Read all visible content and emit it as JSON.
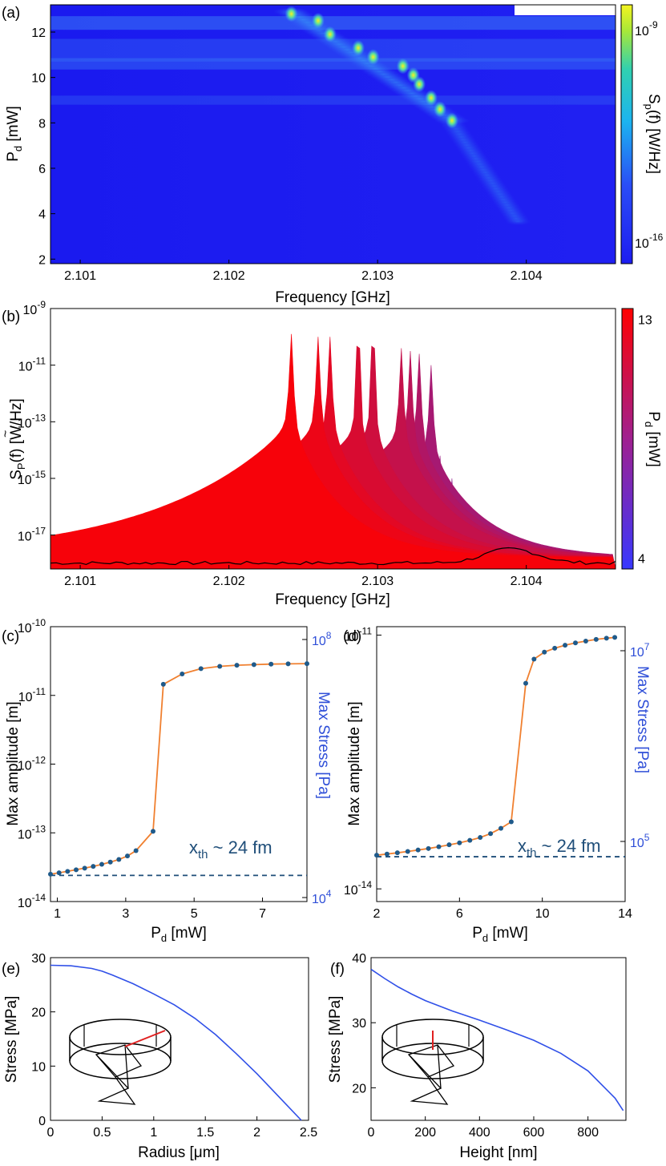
{
  "panels": {
    "a": {
      "label": "(a)",
      "type": "heatmap",
      "xlabel": "Frequency [GHz]",
      "ylabel_main": "P",
      "ylabel_sub": "d",
      "ylabel_unit": " [mW]",
      "x_ticks": [
        "2.101",
        "2.102",
        "2.103",
        "2.104"
      ],
      "x_tick_values": [
        2.101,
        2.102,
        2.103,
        2.104
      ],
      "xlim": [
        2.1008,
        2.1046
      ],
      "y_ticks": [
        "2",
        "4",
        "6",
        "8",
        "10",
        "12"
      ],
      "y_tick_values": [
        2,
        4,
        6,
        8,
        10,
        12
      ],
      "ylim": [
        1.8,
        13.2
      ],
      "colorbar_label": "S_p(f) [W/Hz]",
      "colorbar_label_main": "S",
      "colorbar_label_sub": "p",
      "colorbar_label_rest": "(f) [W/Hz]",
      "colorbar_ticks": [
        {
          "base": "10",
          "exp": "-9"
        },
        {
          "base": "10",
          "exp": "-16"
        }
      ],
      "resonance_peaks": [
        {
          "f": 2.10242,
          "p": 12.8
        },
        {
          "f": 2.1026,
          "p": 12.5
        },
        {
          "f": 2.10268,
          "p": 11.9
        },
        {
          "f": 2.10287,
          "p": 11.3
        },
        {
          "f": 2.10297,
          "p": 10.9
        },
        {
          "f": 2.10317,
          "p": 10.5
        },
        {
          "f": 2.10324,
          "p": 10.1
        },
        {
          "f": 2.10328,
          "p": 9.7
        },
        {
          "f": 2.10336,
          "p": 9.1
        },
        {
          "f": 2.10342,
          "p": 8.6
        },
        {
          "f": 2.1035,
          "p": 8.1
        }
      ]
    },
    "b": {
      "label": "(b)",
      "type": "area",
      "xlabel": "Frequency [GHz]",
      "ylabel": "S_P(f) [W/Hz]",
      "ylabel_main": "S",
      "ylabel_tilde": "~",
      "ylabel_sub": "P",
      "ylabel_rest": "(f) [W/Hz]",
      "x_ticks": [
        "2.101",
        "2.102",
        "2.103",
        "2.104"
      ],
      "x_tick_values": [
        2.101,
        2.102,
        2.103,
        2.104
      ],
      "xlim": [
        2.1008,
        2.1046
      ],
      "y_ticks": [
        {
          "base": "10",
          "exp": "-9"
        },
        {
          "base": "10",
          "exp": "-11"
        },
        {
          "base": "10",
          "exp": "-13"
        },
        {
          "base": "10",
          "exp": "-15"
        },
        {
          "base": "10",
          "exp": "-17"
        }
      ],
      "y_tick_exponents": [
        -9,
        -11,
        -13,
        -15,
        -17
      ],
      "ylim_log10": [
        -18.2,
        -9
      ],
      "colorbar_label_main": "P",
      "colorbar_label_sub": "d",
      "colorbar_label_rest": " [mW]",
      "colorbar_ticks": [
        "13",
        "4"
      ],
      "colorbar_tick_values": [
        13,
        4
      ],
      "colorbar_range": [
        3.6,
        13.4
      ],
      "spectra": [
        {
          "pd": 13.0,
          "f0": 2.10242,
          "peak_log": -9.9
        },
        {
          "pd": 12.5,
          "f0": 2.1026,
          "peak_log": -10.0
        },
        {
          "pd": 12.0,
          "f0": 2.10268,
          "peak_log": -10.0
        },
        {
          "pd": 11.5,
          "f0": 2.10287,
          "peak_log": -10.2
        },
        {
          "pd": 11.0,
          "f0": 2.10297,
          "peak_log": -10.2
        },
        {
          "pd": 10.5,
          "f0": 2.10316,
          "peak_log": -10.4
        },
        {
          "pd": 10.0,
          "f0": 2.10322,
          "peak_log": -10.5
        },
        {
          "pd": 9.5,
          "f0": 2.10328,
          "peak_log": -10.6
        },
        {
          "pd": 9.0,
          "f0": 2.10336,
          "peak_log": -11.0
        },
        {
          "pd": 8.5,
          "f0": 2.10342,
          "peak_log": -14.2
        },
        {
          "pd": 8.0,
          "f0": 2.1035,
          "peak_log": -15.0
        },
        {
          "pd": 7.5,
          "f0": 2.10357,
          "peak_log": -15.4
        },
        {
          "pd": 7.0,
          "f0": 2.10364,
          "peak_log": -15.8
        },
        {
          "pd": 6.5,
          "f0": 2.10372,
          "peak_log": -16.2
        },
        {
          "pd": 6.0,
          "f0": 2.1038,
          "peak_log": -16.5
        },
        {
          "pd": 5.5,
          "f0": 2.10388,
          "peak_log": -16.8
        },
        {
          "pd": 5.0,
          "f0": 2.10396,
          "peak_log": -17.2
        },
        {
          "pd": 4.5,
          "f0": 2.10405,
          "peak_log": -17.6
        },
        {
          "pd": 4.0,
          "f0": 2.10413,
          "peak_log": -17.9
        }
      ]
    },
    "c": {
      "label": "(c)",
      "type": "line",
      "xlabel_main": "P",
      "xlabel_sub": "d",
      "xlabel_unit": "  [mW]",
      "ylabel_left": "Max amplitude [m]",
      "ylabel_right": "Max Stress [Pa]",
      "annotation_main": "x",
      "annotation_sub": "th",
      "annotation_rest": " ~ 24 fm",
      "x_ticks": [
        "1",
        "3",
        "5",
        "7"
      ],
      "x_tick_values": [
        1,
        3,
        5,
        7
      ],
      "xlim": [
        0.8,
        8.3
      ],
      "y_left_ticks": [
        {
          "base": "10",
          "exp": "-10"
        },
        {
          "base": "10",
          "exp": "-11"
        },
        {
          "base": "10",
          "exp": "-12"
        },
        {
          "base": "10",
          "exp": "-13"
        },
        {
          "base": "10",
          "exp": "-14"
        }
      ],
      "y_left_exponents": [
        -10,
        -11,
        -12,
        -13,
        -14
      ],
      "ylim_log10": [
        -14,
        -10
      ],
      "y_right_ticks": [
        {
          "base": "10",
          "exp": "8"
        },
        {
          "base": "10",
          "exp": "4"
        }
      ],
      "y_right_exponents": [
        8,
        4
      ],
      "threshold_m": 2.4e-14,
      "x": [
        0.8,
        1.05,
        1.3,
        1.55,
        1.8,
        2.05,
        2.3,
        2.55,
        2.8,
        3.05,
        3.3,
        3.8,
        4.1,
        4.65,
        5.2,
        5.75,
        6.25,
        6.75,
        7.25,
        7.75,
        8.3
      ],
      "y": [
        2.5e-14,
        2.62e-14,
        2.75e-14,
        2.9e-14,
        3.06e-14,
        3.25e-14,
        3.48e-14,
        3.75e-14,
        4.1e-14,
        4.6e-14,
        5.5e-14,
        1.05e-13,
        1.45e-11,
        2.05e-11,
        2.45e-11,
        2.65e-11,
        2.75e-11,
        2.8e-11,
        2.85e-11,
        2.88e-11,
        2.9e-11
      ]
    },
    "d": {
      "label": "(d)",
      "type": "line",
      "xlabel_main": "P",
      "xlabel_sub": "d",
      "xlabel_unit": "  [mW]",
      "ylabel_left": "Max amplitude [m]",
      "ylabel_right": "Max Stress [Pa]",
      "annotation_main": "x",
      "annotation_sub": "th",
      "annotation_rest": " ~ 24 fm",
      "x_ticks": [
        "2",
        "6",
        "10",
        "14"
      ],
      "x_tick_values": [
        2,
        6,
        10,
        14
      ],
      "xlim": [
        2,
        14
      ],
      "y_left_ticks": [
        {
          "base": "10",
          "exp": "-11"
        },
        {
          "base": "10",
          "exp": "-14"
        }
      ],
      "y_left_exponents": [
        -11,
        -14
      ],
      "ylim_log10": [
        -14.15,
        -10.9
      ],
      "y_right_ticks": [
        {
          "base": "10",
          "exp": "7"
        },
        {
          "base": "10",
          "exp": "5"
        }
      ],
      "y_right_exponents": [
        7,
        5
      ],
      "threshold_m": 2.4e-14,
      "x": [
        2.0,
        2.5,
        3.0,
        3.5,
        4.0,
        4.5,
        5.0,
        5.5,
        6.0,
        6.5,
        7.0,
        7.5,
        8.0,
        8.5,
        9.2,
        9.6,
        10.1,
        10.6,
        11.1,
        11.6,
        12.1,
        12.6,
        13.1,
        13.5
      ],
      "y": [
        2.5e-14,
        2.58e-14,
        2.67e-14,
        2.77e-14,
        2.88e-14,
        3e-14,
        3.15e-14,
        3.32e-14,
        3.5e-14,
        3.75e-14,
        4.05e-14,
        4.5e-14,
        5.2e-14,
        6.2e-14,
        2.7e-12,
        5.2e-12,
        6.3e-12,
        7e-12,
        7.6e-12,
        8.1e-12,
        8.5e-12,
        8.9e-12,
        9.2e-12,
        9.4e-12
      ]
    },
    "e": {
      "label": "(e)",
      "type": "line",
      "xlabel": "Radius [μm]",
      "ylabel": "Stress [MPa]",
      "x_ticks": [
        "0",
        "0.5",
        "1",
        "1.5",
        "2",
        "2.5"
      ],
      "x_tick_values": [
        0,
        0.5,
        1,
        1.5,
        2,
        2.5
      ],
      "xlim": [
        0,
        2.5
      ],
      "y_ticks": [
        "0",
        "10",
        "20",
        "30"
      ],
      "y_tick_values": [
        0,
        10,
        20,
        30
      ],
      "ylim": [
        0,
        30
      ],
      "x": [
        0,
        0.2,
        0.4,
        0.5,
        0.6,
        0.8,
        1.0,
        1.2,
        1.4,
        1.6,
        1.8,
        2.0,
        2.2,
        2.43
      ],
      "y": [
        28.6,
        28.5,
        28.0,
        27.5,
        26.8,
        25.2,
        23.3,
        21.3,
        18.8,
        15.8,
        12.3,
        8.6,
        4.6,
        0
      ]
    },
    "f": {
      "label": "(f)",
      "type": "line",
      "xlabel": "Height [nm]",
      "ylabel": "Stress [MPa]",
      "x_ticks": [
        "0",
        "200",
        "400",
        "600",
        "800"
      ],
      "x_tick_values": [
        0,
        200,
        400,
        600,
        800
      ],
      "xlim": [
        0,
        940
      ],
      "y_ticks": [
        "20",
        "30",
        "40"
      ],
      "y_tick_values": [
        20,
        30,
        40
      ],
      "ylim": [
        15,
        40
      ],
      "x": [
        0,
        50,
        100,
        150,
        200,
        300,
        400,
        500,
        600,
        700,
        800,
        900,
        930
      ],
      "y": [
        38.2,
        36.8,
        35.5,
        34.4,
        33.4,
        31.8,
        30.4,
        28.9,
        27.3,
        25.3,
        22.6,
        18.4,
        16.5
      ]
    }
  },
  "colors": {
    "heat_low": "#1c1cf0",
    "heat_high": "#f0f020",
    "spec_low": "#3838ff",
    "spec_high": "#ff0000",
    "line_orange": "#f08030",
    "marker_blue": "#1f5a8a",
    "dash_navy": "#1f4e79",
    "right_axis_blue": "#2f4fd8",
    "stress_blue": "#3050e8",
    "inset_highlight": "#e02020"
  }
}
